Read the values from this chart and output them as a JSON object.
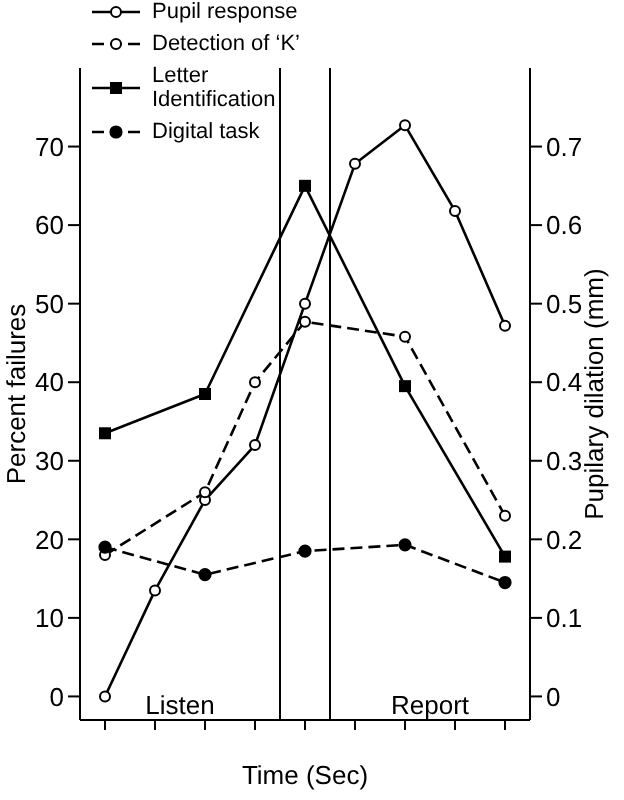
{
  "chart_data": {
    "type": "line",
    "xlabel": "Time (Sec)",
    "ylabel": "Percent failures",
    "y2label": "Pupilary dilation (mm)",
    "categories": [
      null,
      null,
      null,
      null,
      null,
      null,
      null,
      null,
      null
    ],
    "ylim": [
      -3,
      80
    ],
    "yticks": [
      0,
      10,
      20,
      30,
      40,
      50,
      60,
      70
    ],
    "y2lim": [
      -0.03,
      0.8
    ],
    "y2ticks": [
      0,
      0.1,
      0.2,
      0.3,
      0.4,
      0.5,
      0.6,
      0.7
    ],
    "series": [
      {
        "name": "Pupil response",
        "color": "#000000",
        "axis": "y2",
        "marker": "circle",
        "line_style": "solid",
        "values": [
          0,
          0.135,
          0.25,
          0.32,
          0.5,
          0.678,
          0.727,
          0.618,
          0.472
        ]
      },
      {
        "name": "Detection of ‘K’",
        "color": "#000000",
        "marker": "circle",
        "line_style": "dashed",
        "values": [
          18,
          null,
          26,
          40,
          47.7,
          null,
          45.8,
          null,
          23
        ]
      },
      {
        "name": "Letter Identification",
        "color": "#000000",
        "marker": "square",
        "line_style": "solid",
        "values": [
          33.5,
          null,
          38.5,
          null,
          65,
          null,
          39.5,
          null,
          17.8
        ]
      },
      {
        "name": "Digital task",
        "color": "#000000",
        "marker": "circle",
        "line_style": "dashed",
        "values": [
          19,
          null,
          15.5,
          null,
          18.5,
          null,
          19.3,
          null,
          14.5
        ]
      }
    ],
    "annotations": [
      "Listen",
      "Report"
    ],
    "legend": "top left"
  }
}
